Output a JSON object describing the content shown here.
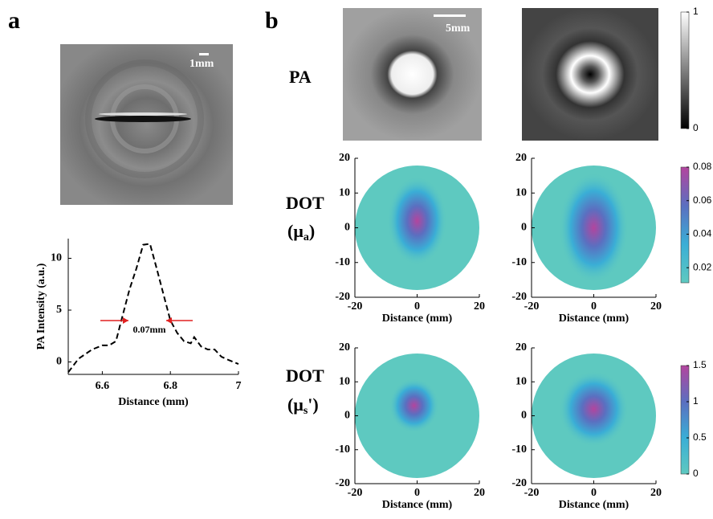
{
  "figure": {
    "panel_labels": [
      "a",
      "b"
    ],
    "scale_bars": [
      "1mm",
      "5mm"
    ],
    "row_labels": [
      {
        "text": "PA"
      },
      {
        "text": "DOT",
        "open": "(μ",
        "sub": "a",
        "close": ")"
      },
      {
        "text": "DOT",
        "open": "(μ",
        "sub": "s",
        "close": "')"
      }
    ]
  },
  "chart_data": [
    {
      "type": "line",
      "xlabel": "Distance (mm)",
      "ylabel": "PA Intensity (a.u.)",
      "annotation": "0.07mm",
      "x": [
        6.5,
        6.53,
        6.57,
        6.6,
        6.62,
        6.64,
        6.66,
        6.68,
        6.7,
        6.72,
        6.74,
        6.76,
        6.78,
        6.8,
        6.82,
        6.84,
        6.86,
        6.87,
        6.89,
        6.91,
        6.93,
        6.95,
        6.97,
        7.0
      ],
      "values": [
        -1,
        0.3,
        1.2,
        1.6,
        1.6,
        2,
        4.5,
        7,
        9,
        11.3,
        11.4,
        9,
        6.5,
        4,
        2.8,
        2,
        1.8,
        2.4,
        1.5,
        1.2,
        1.2,
        0.5,
        0.2,
        -0.2
      ],
      "color": "#000000",
      "dashed": true,
      "xlim": [
        6.5,
        7
      ],
      "xticks": [
        6.6,
        6.8,
        7
      ],
      "ylim": [
        -1.2,
        11.9
      ],
      "yticks": [
        0,
        5,
        10
      ]
    },
    {
      "type": "colorbar",
      "colors": [
        "#000000",
        "#ffffff"
      ],
      "lim": [
        0,
        1
      ],
      "ticks": [
        0,
        1
      ]
    },
    {
      "type": "map",
      "xlabel": "Distance (mm)",
      "xlim": [
        -20,
        20
      ],
      "ylim": [
        -20,
        20
      ],
      "xticks": [
        -20,
        0,
        20
      ],
      "yticks": [
        20,
        10,
        0,
        -10,
        -20
      ],
      "colorbar": {
        "colors": [
          "#5ec9c0",
          "#3aaed6",
          "#5b6fc0",
          "#b3459e"
        ],
        "lim": [
          0.011,
          0.08
        ],
        "ticks": [
          0.02,
          0.04,
          0.06,
          0.08
        ]
      }
    },
    {
      "type": "map",
      "xlabel": "Distance (mm)",
      "xlim": [
        -20,
        20
      ],
      "ylim": [
        -20,
        20
      ],
      "xticks": [
        -20,
        0,
        20
      ],
      "yticks": [
        20,
        10,
        0,
        -10,
        -20
      ],
      "colorbar": {
        "colors": [
          "#5ec9c0",
          "#3aaed6",
          "#5b6fc0",
          "#b3459e"
        ],
        "lim": [
          0,
          1.5
        ],
        "ticks": [
          0,
          0.5,
          1,
          1.5
        ]
      }
    }
  ]
}
